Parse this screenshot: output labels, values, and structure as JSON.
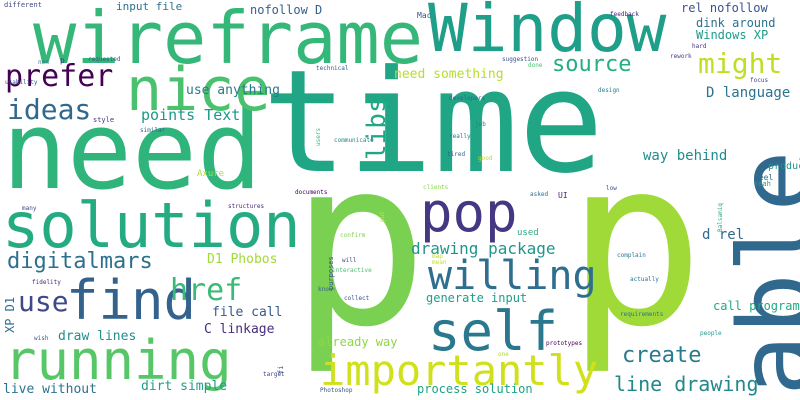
{
  "words": [
    {
      "text": "time",
      "color": "#21a685"
    },
    {
      "text": "need",
      "color": "#2fb47c"
    },
    {
      "text": "p",
      "color": "#7ad151"
    },
    {
      "text": "p",
      "color": "#a0da39"
    },
    {
      "text": "able",
      "color": "#31688e"
    },
    {
      "text": "wireframe",
      "color": "#35b779"
    },
    {
      "text": "Window",
      "color": "#1f9e89"
    },
    {
      "text": "solution",
      "color": "#25ab82"
    },
    {
      "text": "nice",
      "color": "#4ac16d"
    },
    {
      "text": "running",
      "color": "#56c667"
    },
    {
      "text": "self",
      "color": "#2a788e"
    },
    {
      "text": "find",
      "color": "#33628d"
    },
    {
      "text": "pop",
      "color": "#453781"
    },
    {
      "text": "willing",
      "color": "#2e6e8e"
    },
    {
      "text": "importantly",
      "color": "#d0e11c"
    },
    {
      "text": "prefer",
      "color": "#440154"
    },
    {
      "text": "ideas",
      "color": "#31688e"
    },
    {
      "text": "href",
      "color": "#3aba76"
    },
    {
      "text": "use",
      "color": "#3e4989"
    },
    {
      "text": "digitalmars",
      "color": "#2d708e"
    },
    {
      "text": "might",
      "color": "#bddf26"
    },
    {
      "text": "source",
      "color": "#26ad81"
    },
    {
      "text": "libs",
      "color": "#22a785"
    },
    {
      "text": "create",
      "color": "#287c8e"
    },
    {
      "text": "line drawing",
      "color": "#23888e"
    },
    {
      "text": "drawing package",
      "color": "#1f958b"
    },
    {
      "text": "points Text",
      "color": "#1f978b"
    },
    {
      "text": "D language",
      "color": "#2c738e"
    },
    {
      "text": "Windows XP",
      "color": "#1e9b8a"
    },
    {
      "text": "rel nofollow",
      "color": "#3b528b"
    },
    {
      "text": "dink around",
      "color": "#2c728e"
    },
    {
      "text": "use anything",
      "color": "#2a788e"
    },
    {
      "text": "need something",
      "color": "#b5de2b"
    },
    {
      "text": "nofollow D",
      "color": "#355f8d"
    },
    {
      "text": "input file",
      "color": "#2d718e"
    },
    {
      "text": "way behind",
      "color": "#228c8d"
    },
    {
      "text": "d rel",
      "color": "#31688e"
    },
    {
      "text": "D1 Phobos",
      "color": "#a2da37"
    },
    {
      "text": "file call",
      "color": "#38598c"
    },
    {
      "text": "generate input",
      "color": "#1f9e89"
    },
    {
      "text": "C linkage",
      "color": "#472d7b"
    },
    {
      "text": "draw lines",
      "color": "#228d8d"
    },
    {
      "text": "call program",
      "color": "#22a884"
    },
    {
      "text": "already way",
      "color": "#8fd744"
    },
    {
      "text": "live without",
      "color": "#2c728e"
    },
    {
      "text": "dirt simple",
      "color": "#1f9e89"
    },
    {
      "text": "process solution",
      "color": "#1fa187"
    },
    {
      "text": "XP D1",
      "color": "#2e6e8e"
    },
    {
      "text": "product",
      "color": "#21918c"
    },
    {
      "text": "used",
      "color": "#27ad81"
    },
    {
      "text": "UI",
      "color": "#482475"
    },
    {
      "text": "feel",
      "color": "#2e6f8e"
    },
    {
      "text": "Yeah",
      "color": "#1fa088"
    },
    {
      "text": "Axure",
      "color": "#b4de2c"
    },
    {
      "text": "Mac",
      "color": "#3b528b"
    },
    {
      "text": "different",
      "color": "#3e4a89"
    },
    {
      "text": "usability",
      "color": "#39568c"
    },
    {
      "text": "style",
      "color": "#46337e"
    },
    {
      "text": "feedback",
      "color": "#482374"
    },
    {
      "text": "hard",
      "color": "#46327e"
    },
    {
      "text": "rework",
      "color": "#433d84"
    },
    {
      "text": "focus",
      "color": "#3f4788"
    },
    {
      "text": "design",
      "color": "#287d8e"
    },
    {
      "text": "technical",
      "color": "#34618d"
    },
    {
      "text": "suggestion",
      "color": "#3b518b"
    },
    {
      "text": "done",
      "color": "#48c16e"
    },
    {
      "text": "developers",
      "color": "#31688e"
    },
    {
      "text": "job",
      "color": "#26818e"
    },
    {
      "text": "really",
      "color": "#297b8e"
    },
    {
      "text": "tired",
      "color": "#35608d"
    },
    {
      "text": "good",
      "color": "#b8de29"
    },
    {
      "text": "communicate",
      "color": "#25848e"
    },
    {
      "text": "users",
      "color": "#35b779"
    },
    {
      "text": "clients",
      "color": "#8bd646"
    },
    {
      "text": "documents",
      "color": "#440154"
    },
    {
      "text": "asked",
      "color": "#31688e"
    },
    {
      "text": "low",
      "color": "#3e4a89"
    },
    {
      "text": "many",
      "color": "#3f4889"
    },
    {
      "text": "structures",
      "color": "#482878"
    },
    {
      "text": "similar",
      "color": "#33638d"
    },
    {
      "text": "requested",
      "color": "#3b528b"
    },
    {
      "text": "non",
      "color": "#2d708e"
    },
    {
      "text": "p",
      "color": "#46337e"
    },
    {
      "text": "confirm",
      "color": "#7ad151"
    },
    {
      "text": "will",
      "color": "#3e4a89"
    },
    {
      "text": "purposes",
      "color": "#3d4e8a"
    },
    {
      "text": "interactive",
      "color": "#4ac16d"
    },
    {
      "text": "map",
      "color": "#c2df23"
    },
    {
      "text": "complain",
      "color": "#2a768e"
    },
    {
      "text": "Balsamiq",
      "color": "#25ac82"
    },
    {
      "text": "know",
      "color": "#33638d"
    },
    {
      "text": "collect",
      "color": "#3b528b"
    },
    {
      "text": "actually",
      "color": "#2c738e"
    },
    {
      "text": "put",
      "color": "#d8e219"
    },
    {
      "text": "fidelity",
      "color": "#482979"
    },
    {
      "text": "wish",
      "color": "#39568c"
    },
    {
      "text": "prototypes",
      "color": "#440154"
    },
    {
      "text": "requirements",
      "color": "#2c718e"
    },
    {
      "text": "people",
      "color": "#1f9a8a"
    },
    {
      "text": "one",
      "color": "#addc30"
    },
    {
      "text": "target",
      "color": "#404688"
    },
    {
      "text": "fi",
      "color": "#3b528b"
    },
    {
      "text": "Photoshop",
      "color": "#3b528b"
    },
    {
      "text": "mean",
      "color": "#c2df23"
    }
  ]
}
